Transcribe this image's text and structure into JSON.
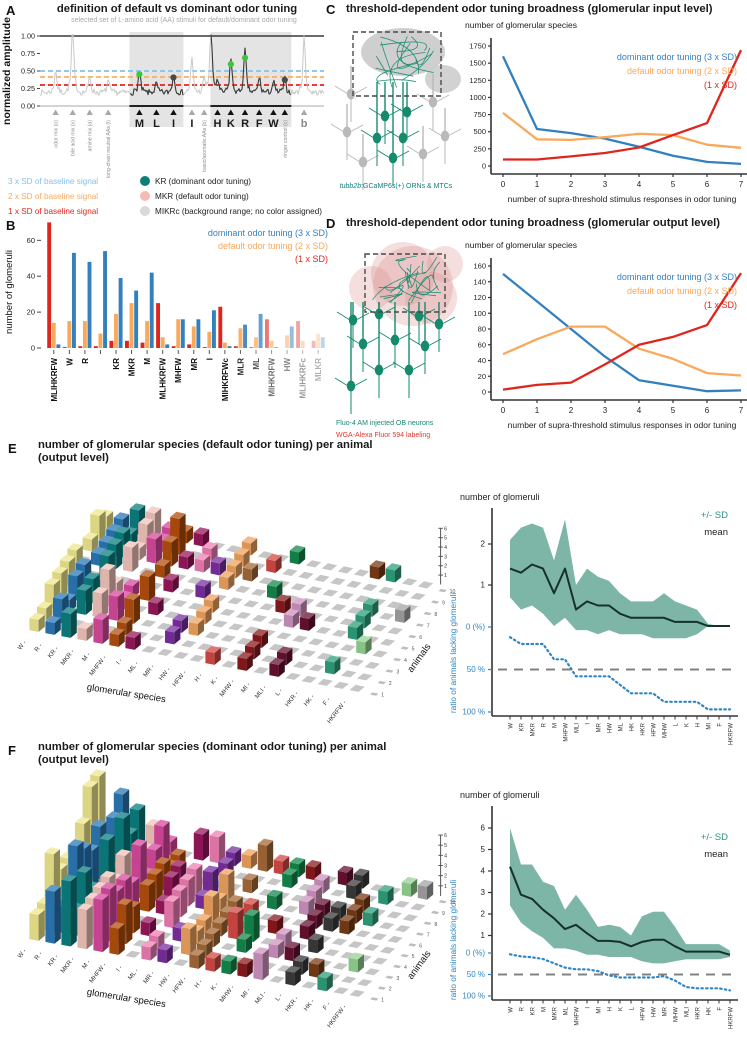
{
  "colors": {
    "blue": "#3380bf",
    "dash_blue": "#85c1e8",
    "orange": "#f9a95c",
    "red": "#df261c",
    "teal": "#0d7f7a",
    "pink": "#f4bcb6",
    "lightgray": "#d9d9d9",
    "band": "#6fad9d",
    "mean": "#16302c",
    "ratio_blue": "#2e86c6",
    "gray_dash": "#828282",
    "subtitle_gray": "#a9a9a9",
    "neuron_green": "#158a6d",
    "neuron_gray": "#b9b9b9",
    "wga_red": "#de3a2e",
    "trace_gray": "#c9c9c9",
    "trace_black": "#3a3a3a",
    "dot_green": "#3ec53e",
    "dot_dark": "#4a4a4a"
  },
  "panels": {
    "a": {
      "label": "A",
      "title": "definition of default vs dominant odor tuning",
      "subtitle": "selected set of L-amino acid (AA) stimuli for default/dominant odor tuning",
      "ylabel": "normalized amplitude",
      "thresholds": [
        {
          "label": "3 x SD of baseline signal",
          "value": 0.5
        },
        {
          "label": "2 x SD of baseline signal",
          "value": 0.415
        },
        {
          "label": "1 x SD of baseline signal",
          "value": 0.3
        }
      ],
      "dot_legend": [
        {
          "label": "KR (dominant odor tuning)"
        },
        {
          "label": "MKR (default odor tuning)"
        },
        {
          "label": "MIKRc (background range; no color assigned)"
        }
      ]
    },
    "b": {
      "label": "B",
      "legend": [
        "dominant odor tuning (3 x SD)",
        "default odor tuning (2 x SD)",
        "(1 x SD)"
      ]
    },
    "c": {
      "label": "C",
      "title": "threshold-dependent odor tuning broadness (glomerular input level)",
      "caption_italic": "tubb2b",
      "caption_rest": ":GCaMP6s(+) ORNs & MTCs"
    },
    "d": {
      "label": "D",
      "title": "threshold-dependent odor tuning broadness (glomerular output level)",
      "caption1": "Fluo-4 AM injected OB neurons",
      "caption2": "WGA-Alexa Fluor 594 labeling"
    },
    "e": {
      "label": "E",
      "title_line1": "number of glomerular species (default odor tuning) per animal",
      "title_line2": "(output level)",
      "ratio_label": "ratio of animals lacking glomeruli"
    },
    "f": {
      "label": "F",
      "title_line1": "number of glomerular species (dominant odor tuning) per animal",
      "title_line2": "(output level)",
      "ratio_label": "ratio of animals lacking glomeruli"
    }
  },
  "chart_data": [
    {
      "id": "A",
      "type": "line",
      "title": "definition of default vs dominant odor tuning",
      "ylabel": "normalized amplitude",
      "yticks": [
        "1.00",
        "0.75",
        "0.50",
        "0.25",
        "0.00"
      ],
      "ylim": [
        0,
        1
      ],
      "threshold_values": [
        0.5,
        0.415,
        0.3
      ],
      "shaded_boxes": [
        [
          0.315,
          0.505
        ],
        [
          0.6,
          0.885
        ]
      ],
      "stimuli": [
        {
          "pos": 0.055,
          "label": "odor mix (o)",
          "type": "small"
        },
        {
          "pos": 0.115,
          "label": "bile acid mix (x)",
          "type": "small"
        },
        {
          "pos": 0.175,
          "label": "amine mix (a)",
          "type": "small"
        },
        {
          "pos": 0.24,
          "label": "long-chain neutral AAs (l)",
          "type": "small"
        },
        {
          "pos": 0.35,
          "label": "M",
          "type": "big"
        },
        {
          "pos": 0.41,
          "label": "L",
          "type": "big"
        },
        {
          "pos": 0.47,
          "label": "I",
          "type": "big"
        },
        {
          "pos": 0.535,
          "label": "I",
          "type": "big"
        },
        {
          "pos": 0.578,
          "label": "basic/aromatic AAs (b)",
          "type": "small"
        },
        {
          "pos": 0.625,
          "label": "H",
          "type": "big"
        },
        {
          "pos": 0.672,
          "label": "K",
          "type": "big"
        },
        {
          "pos": 0.722,
          "label": "R",
          "type": "big"
        },
        {
          "pos": 0.772,
          "label": "F",
          "type": "big"
        },
        {
          "pos": 0.822,
          "label": "W",
          "type": "big"
        },
        {
          "pos": 0.862,
          "label": "ringer control (c)",
          "type": "small"
        },
        {
          "pos": 0.93,
          "label": "b",
          "type": "biggray"
        }
      ],
      "trace_peaks": [
        [
          0.055,
          0.42
        ],
        [
          0.115,
          0.95
        ],
        [
          0.175,
          0.34
        ],
        [
          0.24,
          0.3
        ],
        [
          0.35,
          0.4
        ],
        [
          0.41,
          0.27
        ],
        [
          0.47,
          0.36
        ],
        [
          0.535,
          0.54
        ],
        [
          0.578,
          0.33
        ],
        [
          0.602,
          0.9
        ],
        [
          0.625,
          0.31
        ],
        [
          0.672,
          0.55
        ],
        [
          0.722,
          0.64
        ],
        [
          0.772,
          0.34
        ],
        [
          0.822,
          0.29
        ],
        [
          0.862,
          0.32
        ],
        [
          0.93,
          0.78
        ]
      ],
      "marked_dots": [
        {
          "pos": 0.35,
          "amp": 0.41,
          "color": "green"
        },
        {
          "pos": 0.47,
          "amp": 0.365,
          "color": "dark"
        },
        {
          "pos": 0.672,
          "amp": 0.555,
          "color": "green"
        },
        {
          "pos": 0.722,
          "amp": 0.645,
          "color": "green"
        },
        {
          "pos": 0.862,
          "amp": 0.33,
          "color": "dark"
        }
      ],
      "seed": 7
    },
    {
      "id": "B",
      "type": "bar",
      "ylabel": "number of glomeruli",
      "yticks": [
        0,
        20,
        40,
        60
      ],
      "ylim": [
        0,
        73
      ],
      "categories": [
        "MLIHKRFW",
        "W",
        "R",
        "",
        "KR",
        "MKR",
        "M",
        "MLHKRFW",
        "MHFW",
        "MR",
        "I",
        "MIHKRFWc",
        "MLR",
        "ML",
        "MIHKRFW",
        "HW",
        "MLIHKRFc",
        "MLKR"
      ],
      "series": [
        {
          "name": "(1 x SD)",
          "color_key": "red",
          "values": [
            70,
            0.5,
            1,
            1,
            4,
            4,
            3,
            25,
            1,
            2,
            0.5,
            23,
            1,
            0.5,
            16,
            0,
            15,
            4
          ]
        },
        {
          "name": "default odor tuning (2 x SD)",
          "color_key": "orange",
          "values": [
            14,
            15,
            15,
            8,
            19,
            25,
            15,
            6,
            16,
            12,
            9,
            3,
            11,
            6,
            4,
            7,
            4,
            8
          ]
        },
        {
          "name": "dominant odor tuning (3 x SD)",
          "color_key": "blue",
          "values": [
            2,
            53,
            48,
            54,
            39,
            32,
            42,
            2,
            16,
            16,
            21,
            1,
            13,
            19,
            0.5,
            12,
            0,
            6
          ]
        }
      ],
      "group_opacity": [
        1,
        1,
        1,
        1,
        1,
        1,
        1,
        1,
        1,
        1,
        1,
        1,
        0.9,
        0.75,
        0.62,
        0.52,
        0.42,
        0.32
      ]
    },
    {
      "id": "C",
      "type": "line",
      "ytitle": "number of glomerular species",
      "xtitle": "number of supra-threshold stimulus responses in odor tuning",
      "x": [
        0,
        1,
        2,
        3,
        4,
        5,
        6,
        7
      ],
      "yticks": [
        0,
        250,
        500,
        750,
        1000,
        1250,
        1500,
        1750
      ],
      "ylim": [
        0,
        1750
      ],
      "series": [
        {
          "name": "dominant odor tuning (3 x SD)",
          "color_key": "blue",
          "values": [
            1600,
            540,
            480,
            400,
            280,
            150,
            60,
            30
          ]
        },
        {
          "name": "default odor tuning (2 x SD)",
          "color_key": "orange",
          "values": [
            775,
            390,
            380,
            420,
            470,
            450,
            310,
            265
          ]
        },
        {
          "name": "(1 x SD)",
          "color_key": "red",
          "values": [
            95,
            95,
            140,
            190,
            270,
            450,
            625,
            1690
          ]
        }
      ]
    },
    {
      "id": "D",
      "type": "line",
      "ytitle": "number of glomerular species",
      "xtitle": "number of supra-threshold stimulus responses in odor tuning",
      "x": [
        0,
        1,
        2,
        3,
        4,
        5,
        6,
        7
      ],
      "yticks": [
        0,
        20,
        40,
        60,
        80,
        100,
        120,
        140,
        160
      ],
      "ylim": [
        0,
        160
      ],
      "series": [
        {
          "name": "dominant odor tuning (3 x SD)",
          "color_key": "blue",
          "values": [
            150,
            115,
            80,
            45,
            15,
            8,
            1,
            2
          ]
        },
        {
          "name": "default odor tuning (2 x SD)",
          "color_key": "orange",
          "values": [
            48,
            67,
            83,
            83,
            55,
            42,
            24,
            21
          ]
        },
        {
          "name": "(1 x SD)",
          "color_key": "red",
          "values": [
            3,
            9,
            12,
            35,
            60,
            70,
            85,
            151
          ]
        }
      ]
    },
    {
      "id": "E3D",
      "type": "bar3d",
      "xlabel": "glomerular species",
      "ylabel": "animals",
      "species": [
        "W",
        "R",
        "KR",
        "MKR",
        "M",
        "MHFW",
        "I",
        "ML",
        "MR",
        "HW",
        "HFW",
        "H",
        "K",
        "MHW",
        "MI",
        "MLI",
        "L",
        "HKR",
        "HK",
        "F",
        "HKRFW"
      ],
      "animals": [
        1,
        2,
        3,
        4,
        5,
        6,
        7,
        8,
        9,
        10
      ],
      "species_means": [
        1.4,
        1.4,
        1.3,
        1.5,
        0.8,
        1.4,
        0.6,
        0.3,
        0.5,
        0.5,
        0.2,
        0.1,
        0.1,
        0.2,
        0.05,
        0.4,
        0.1,
        0.2,
        0.2,
        0.05,
        0.02
      ],
      "zticks": [
        1,
        2,
        3,
        4,
        5,
        6
      ],
      "zmax": 6,
      "seed": 11,
      "palette": [
        "#f0e88f",
        "#2c79b6",
        "#0c7f80",
        "#f2c4bc",
        "#d8499e",
        "#b34f0e",
        "#99175c",
        "#ef7fb4",
        "#7c2fa3",
        "#efa45f",
        "#a66a38",
        "#d44a45",
        "#148a4c",
        "#8c1a1e",
        "#cf93c1",
        "#671231",
        "#3b3b3b",
        "#7a3c16",
        "#2fa07c",
        "#93d393",
        "#a3a3a3"
      ]
    },
    {
      "id": "E_right",
      "type": "line",
      "title": "number of glomeruli",
      "band_label": "+/- SD",
      "mean_label": "mean",
      "ratio_ticks": [
        "0 (%)",
        "50 %",
        "100 %"
      ],
      "yticks": [
        1,
        2
      ],
      "categories": [
        "W",
        "KR",
        "MKR",
        "R",
        "M",
        "MHFW",
        "MLI",
        "I",
        "MR",
        "HW",
        "ML",
        "HK",
        "HKR",
        "HFW",
        "MHW",
        "L",
        "K",
        "H",
        "MI",
        "F",
        "HKRFW"
      ],
      "mean": [
        1.4,
        1.3,
        1.5,
        1.4,
        0.8,
        1.4,
        0.4,
        0.6,
        0.5,
        0.5,
        0.3,
        0.2,
        0.2,
        0.2,
        0.2,
        0.1,
        0.1,
        0.1,
        0,
        0,
        0
      ],
      "sd_upper": [
        2.1,
        2.4,
        2.5,
        2.4,
        1.6,
        2.6,
        1.0,
        1.4,
        1.2,
        1.1,
        0.8,
        0.6,
        0.6,
        0.6,
        0.8,
        0.6,
        0.5,
        0.4,
        0.05,
        0,
        0
      ],
      "sd_lower": [
        0.7,
        0.4,
        0.5,
        0.3,
        0.0,
        0.2,
        -0.1,
        -0.1,
        -0.2,
        -0.1,
        -0.2,
        -0.2,
        -0.2,
        -0.3,
        -0.3,
        -0.3,
        -0.3,
        -0.2,
        0,
        0,
        0
      ],
      "ratio_percent": [
        12,
        20,
        20,
        20,
        38,
        38,
        58,
        58,
        58,
        58,
        68,
        78,
        78,
        78,
        88,
        88,
        88,
        88,
        97,
        97,
        97
      ]
    },
    {
      "id": "F3D",
      "type": "bar3d",
      "xlabel": "glomerular species",
      "ylabel": "animals",
      "species": [
        "W",
        "R",
        "KR",
        "MKR",
        "M",
        "MHFW",
        "I",
        "ML",
        "MR",
        "HW",
        "HFW",
        "H",
        "K",
        "MHW",
        "MI",
        "MLI",
        "L",
        "HKR",
        "HK",
        "F",
        "HKRFW"
      ],
      "animals": [
        1,
        2,
        3,
        4,
        5,
        6,
        7,
        8,
        9,
        10
      ],
      "species_means": [
        4.2,
        2.9,
        2.7,
        1.8,
        2.2,
        1.5,
        1.1,
        1.3,
        0.8,
        0.8,
        0.7,
        0.75,
        0.7,
        0.5,
        0.75,
        0.25,
        0.5,
        0.25,
        0.25,
        0.25,
        0.1
      ],
      "zticks": [
        1,
        2,
        3,
        4,
        5,
        6
      ],
      "zmax": 6,
      "seed": 23,
      "palette": [
        "#f0e88f",
        "#2c79b6",
        "#0c7f80",
        "#f2c4bc",
        "#d8499e",
        "#b34f0e",
        "#99175c",
        "#ef7fb4",
        "#7c2fa3",
        "#efa45f",
        "#a66a38",
        "#d44a45",
        "#148a4c",
        "#8c1a1e",
        "#cf93c1",
        "#671231",
        "#3b3b3b",
        "#7a3c16",
        "#2fa07c",
        "#93d393",
        "#a3a3a3"
      ]
    },
    {
      "id": "F_right",
      "type": "line",
      "title": "number of glomeruli",
      "band_label": "+/- SD",
      "mean_label": "mean",
      "ratio_ticks": [
        "0 (%)",
        "50 %",
        "100 %"
      ],
      "yticks": [
        1,
        2,
        3,
        4,
        5,
        6
      ],
      "categories": [
        "W",
        "R",
        "KR",
        "M",
        "MKR",
        "ML",
        "MHFW",
        "I",
        "MI",
        "H",
        "K",
        "L",
        "HFW",
        "HW",
        "MR",
        "MHW",
        "MLI",
        "HKR",
        "HK",
        "F",
        "HKRFW"
      ],
      "mean": [
        4.2,
        2.9,
        2.7,
        2.2,
        1.8,
        1.3,
        1.5,
        1.1,
        0.75,
        0.75,
        0.7,
        0.5,
        0.7,
        0.8,
        0.8,
        0.5,
        0.25,
        0.25,
        0.25,
        0.25,
        0.1
      ],
      "sd_upper": [
        6.0,
        4.3,
        4.3,
        3.5,
        3.3,
        2.2,
        2.9,
        2.2,
        1.4,
        1.5,
        1.4,
        1.0,
        1.9,
        2.1,
        2.1,
        1.4,
        0.6,
        0.6,
        0.6,
        0.6,
        0.3
      ],
      "sd_lower": [
        2.4,
        1.6,
        1.2,
        0.9,
        0.4,
        0.4,
        0.3,
        0.1,
        0.1,
        0.0,
        0.0,
        0.0,
        -0.2,
        -0.3,
        -0.3,
        -0.2,
        -0.1,
        -0.1,
        -0.1,
        -0.1,
        0.0
      ],
      "ratio_percent": [
        3,
        8,
        10,
        14,
        24,
        34,
        38,
        38,
        42,
        52,
        57,
        57,
        57,
        57,
        54,
        64,
        79,
        82,
        82,
        82,
        87
      ]
    }
  ]
}
